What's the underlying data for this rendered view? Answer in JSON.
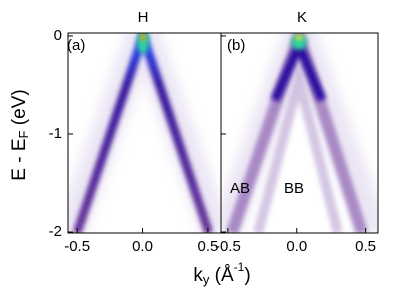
{
  "chart_data": [
    {
      "type": "image",
      "title": "H",
      "panel_label": "(a)",
      "xlim": [
        -0.57,
        0.6
      ],
      "xticks": [
        -0.5,
        {
          "value": 0,
          "label": "0.0"
        },
        0.5
      ],
      "ylim": [
        -2.01,
        0.03
      ],
      "yticks": [
        0,
        -1,
        -2
      ],
      "ylabel_parts": [
        "E - E",
        "F",
        " (eV)"
      ]
    },
    {
      "type": "image",
      "title": "K",
      "panel_label": "(b)",
      "xlim": [
        -0.55,
        0.59
      ],
      "xticks": [
        -0.5,
        {
          "value": 0,
          "label": "0.0"
        },
        0.5
      ],
      "annotations": [
        "AB",
        "BB"
      ]
    }
  ],
  "xlabel_parts": [
    "k",
    "y",
    " (Å",
    "-1",
    ")"
  ]
}
